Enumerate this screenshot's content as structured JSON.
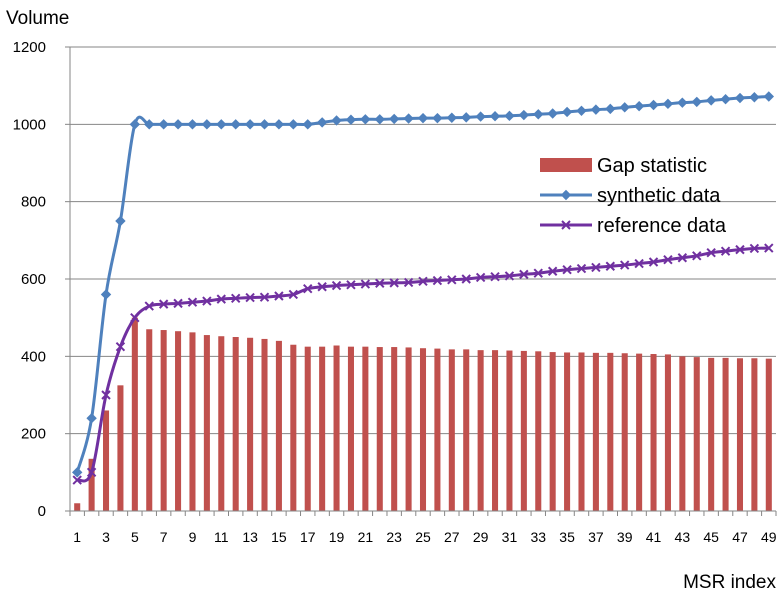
{
  "chart_data": {
    "type": "bar",
    "title": "",
    "ylabel": "Volume",
    "xlabel": "MSR index",
    "ylim": [
      0,
      1200
    ],
    "yticks": [
      0,
      200,
      400,
      600,
      800,
      1000,
      1200
    ],
    "xticks": [
      1,
      3,
      5,
      7,
      9,
      11,
      13,
      15,
      17,
      19,
      21,
      23,
      25,
      27,
      29,
      31,
      33,
      35,
      37,
      39,
      41,
      43,
      45,
      47,
      49
    ],
    "x": [
      1,
      2,
      3,
      4,
      5,
      6,
      7,
      8,
      9,
      10,
      11,
      12,
      13,
      14,
      15,
      16,
      17,
      18,
      19,
      20,
      21,
      22,
      23,
      24,
      25,
      26,
      27,
      28,
      29,
      30,
      31,
      32,
      33,
      34,
      35,
      36,
      37,
      38,
      39,
      40,
      41,
      42,
      43,
      44,
      45,
      46,
      47,
      48,
      49
    ],
    "grid": "horizontal",
    "legend_position": "right",
    "series": [
      {
        "name": "Gap statistic",
        "kind": "bar",
        "color": "#C0504D",
        "values": [
          20,
          135,
          260,
          325,
          500,
          470,
          468,
          465,
          462,
          455,
          452,
          450,
          448,
          445,
          440,
          430,
          425,
          425,
          428,
          425,
          425,
          424,
          424,
          423,
          421,
          420,
          418,
          418,
          416,
          416,
          415,
          414,
          413,
          411,
          410,
          410,
          409,
          409,
          408,
          407,
          406,
          405,
          400,
          398,
          396,
          396,
          395,
          395,
          394
        ]
      },
      {
        "name": "synthetic data",
        "kind": "line",
        "marker": "diamond",
        "color": "#4F81BD",
        "values": [
          100,
          240,
          560,
          750,
          1000,
          1000,
          1000,
          1000,
          1000,
          1000,
          1000,
          1000,
          1000,
          1000,
          1000,
          1000,
          1000,
          1005,
          1010,
          1012,
          1013,
          1013,
          1014,
          1015,
          1016,
          1016,
          1017,
          1018,
          1020,
          1021,
          1022,
          1024,
          1026,
          1028,
          1032,
          1035,
          1038,
          1040,
          1044,
          1047,
          1050,
          1053,
          1056,
          1058,
          1062,
          1065,
          1068,
          1070,
          1072
        ]
      },
      {
        "name": "reference data",
        "kind": "line",
        "marker": "x",
        "color": "#7030A0",
        "values": [
          80,
          100,
          300,
          425,
          500,
          530,
          535,
          537,
          540,
          543,
          548,
          550,
          552,
          553,
          556,
          560,
          575,
          580,
          583,
          585,
          587,
          589,
          590,
          591,
          594,
          596,
          598,
          600,
          604,
          606,
          608,
          612,
          615,
          620,
          624,
          627,
          630,
          633,
          636,
          640,
          644,
          650,
          655,
          660,
          668,
          672,
          676,
          679,
          680
        ]
      }
    ]
  }
}
